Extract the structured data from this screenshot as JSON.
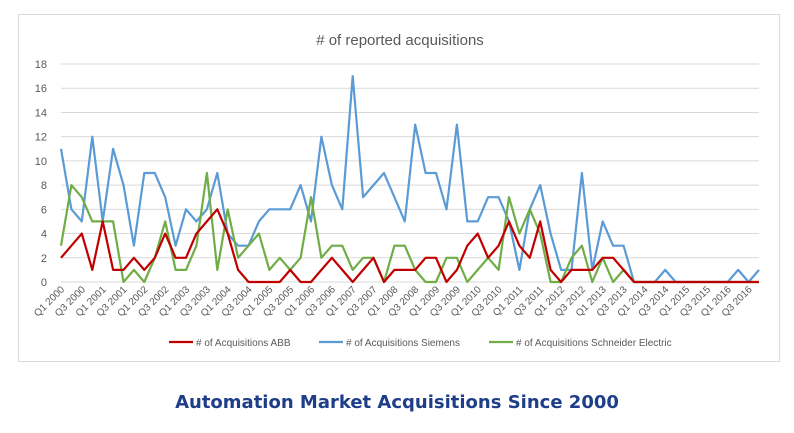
{
  "caption": "Automation Market Acquisitions Since 2000",
  "colors": {
    "abb": "#c00000",
    "siemens": "#5b9bd5",
    "schneider": "#70ad47",
    "grid": "#d9d9d9",
    "text": "#595959"
  },
  "chart_data": {
    "type": "line",
    "title": "# of reported acquisitions",
    "xlabel": "",
    "ylabel": "",
    "ylim": [
      0,
      18
    ],
    "yticks": [
      0,
      2,
      4,
      6,
      8,
      10,
      12,
      14,
      16,
      18
    ],
    "grid": true,
    "legend": "bottom",
    "x": [
      "Q1 2000",
      "Q2 2000",
      "Q3 2000",
      "Q4 2000",
      "Q1 2001",
      "Q2 2001",
      "Q3 2001",
      "Q4 2001",
      "Q1 2002",
      "Q2 2002",
      "Q3 2002",
      "Q4 2002",
      "Q1 2003",
      "Q2 2003",
      "Q3 2003",
      "Q4 2003",
      "Q1 2004",
      "Q2 2004",
      "Q3 2004",
      "Q4 2004",
      "Q1 2005",
      "Q2 2005",
      "Q3 2005",
      "Q4 2005",
      "Q1 2006",
      "Q2 2006",
      "Q3 2006",
      "Q4 2006",
      "Q1 2007",
      "Q2 2007",
      "Q3 2007",
      "Q4 2007",
      "Q1 2008",
      "Q2 2008",
      "Q3 2008",
      "Q4 2008",
      "Q1 2009",
      "Q2 2009",
      "Q3 2009",
      "Q4 2009",
      "Q1 2010",
      "Q2 2010",
      "Q3 2010",
      "Q4 2010",
      "Q1 2011",
      "Q2 2011",
      "Q3 2011",
      "Q4 2011",
      "Q1 2012",
      "Q2 2012",
      "Q3 2012",
      "Q4 2012",
      "Q1 2013",
      "Q2 2013",
      "Q3 2013",
      "Q4 2013",
      "Q1 2014",
      "Q2 2014",
      "Q3 2014",
      "Q4 2014",
      "Q1 2015",
      "Q2 2015",
      "Q3 2015",
      "Q4 2015",
      "Q1 2016",
      "Q2 2016",
      "Q3 2016",
      "Q4 2016"
    ],
    "tick_labels": [
      "Q1 2000",
      "Q3 2000",
      "Q1 2001",
      "Q3 2001",
      "Q1 2002",
      "Q3 2002",
      "Q1 2003",
      "Q3 2003",
      "Q1 2004",
      "Q3 2004",
      "Q1 2005",
      "Q3 2005",
      "Q1 2006",
      "Q3 2006",
      "Q1 2007",
      "Q3 2007",
      "Q1 2008",
      "Q3 2008",
      "Q1 2009",
      "Q3 2009",
      "Q1 2010",
      "Q3 2010",
      "Q1 2011",
      "Q3 2011",
      "Q1 2012",
      "Q3 2012",
      "Q1 2013",
      "Q3 2013",
      "Q1 2014",
      "Q3 2014",
      "Q1 2015",
      "Q3 2015",
      "Q1 2016",
      "Q3 2016"
    ],
    "series": [
      {
        "name": "# of Acquisitions ABB",
        "key": "abb",
        "values": [
          2,
          3,
          4,
          1,
          5,
          1,
          1,
          2,
          1,
          2,
          4,
          2,
          2,
          4,
          5,
          6,
          4,
          1,
          0,
          0,
          0,
          0,
          1,
          0,
          0,
          1,
          2,
          1,
          0,
          1,
          2,
          0,
          1,
          1,
          1,
          2,
          2,
          0,
          1,
          3,
          4,
          2,
          3,
          5,
          3,
          2,
          5,
          1,
          0,
          1,
          1,
          1,
          2,
          2,
          1,
          0,
          0,
          0,
          0,
          0,
          0,
          0,
          0,
          0,
          0,
          0,
          0,
          0
        ]
      },
      {
        "name": "# of Acquisitions Siemens",
        "key": "siemens",
        "values": [
          11,
          6,
          5,
          12,
          5,
          11,
          8,
          3,
          9,
          9,
          7,
          3,
          6,
          5,
          6,
          9,
          4,
          3,
          3,
          5,
          6,
          6,
          6,
          8,
          5,
          12,
          8,
          6,
          17,
          7,
          8,
          9,
          7,
          5,
          13,
          9,
          9,
          6,
          13,
          5,
          5,
          7,
          7,
          5,
          1,
          6,
          8,
          4,
          1,
          1,
          9,
          1,
          5,
          3,
          3,
          0,
          0,
          0,
          1,
          0,
          0,
          0,
          0,
          0,
          0,
          1,
          0,
          1
        ]
      },
      {
        "name": "# of Acquisitions Schneider Electric",
        "key": "schneider",
        "values": [
          3,
          8,
          7,
          5,
          5,
          5,
          0,
          1,
          0,
          2,
          5,
          1,
          1,
          3,
          9,
          1,
          6,
          2,
          3,
          4,
          1,
          2,
          1,
          2,
          7,
          2,
          3,
          3,
          1,
          2,
          2,
          0,
          3,
          3,
          1,
          0,
          0,
          2,
          2,
          0,
          1,
          2,
          1,
          7,
          4,
          6,
          4,
          0,
          0,
          2,
          3,
          0,
          2,
          0,
          1,
          0,
          0,
          0,
          0,
          0,
          0,
          0,
          0,
          0,
          0,
          0,
          0,
          0
        ]
      }
    ]
  }
}
